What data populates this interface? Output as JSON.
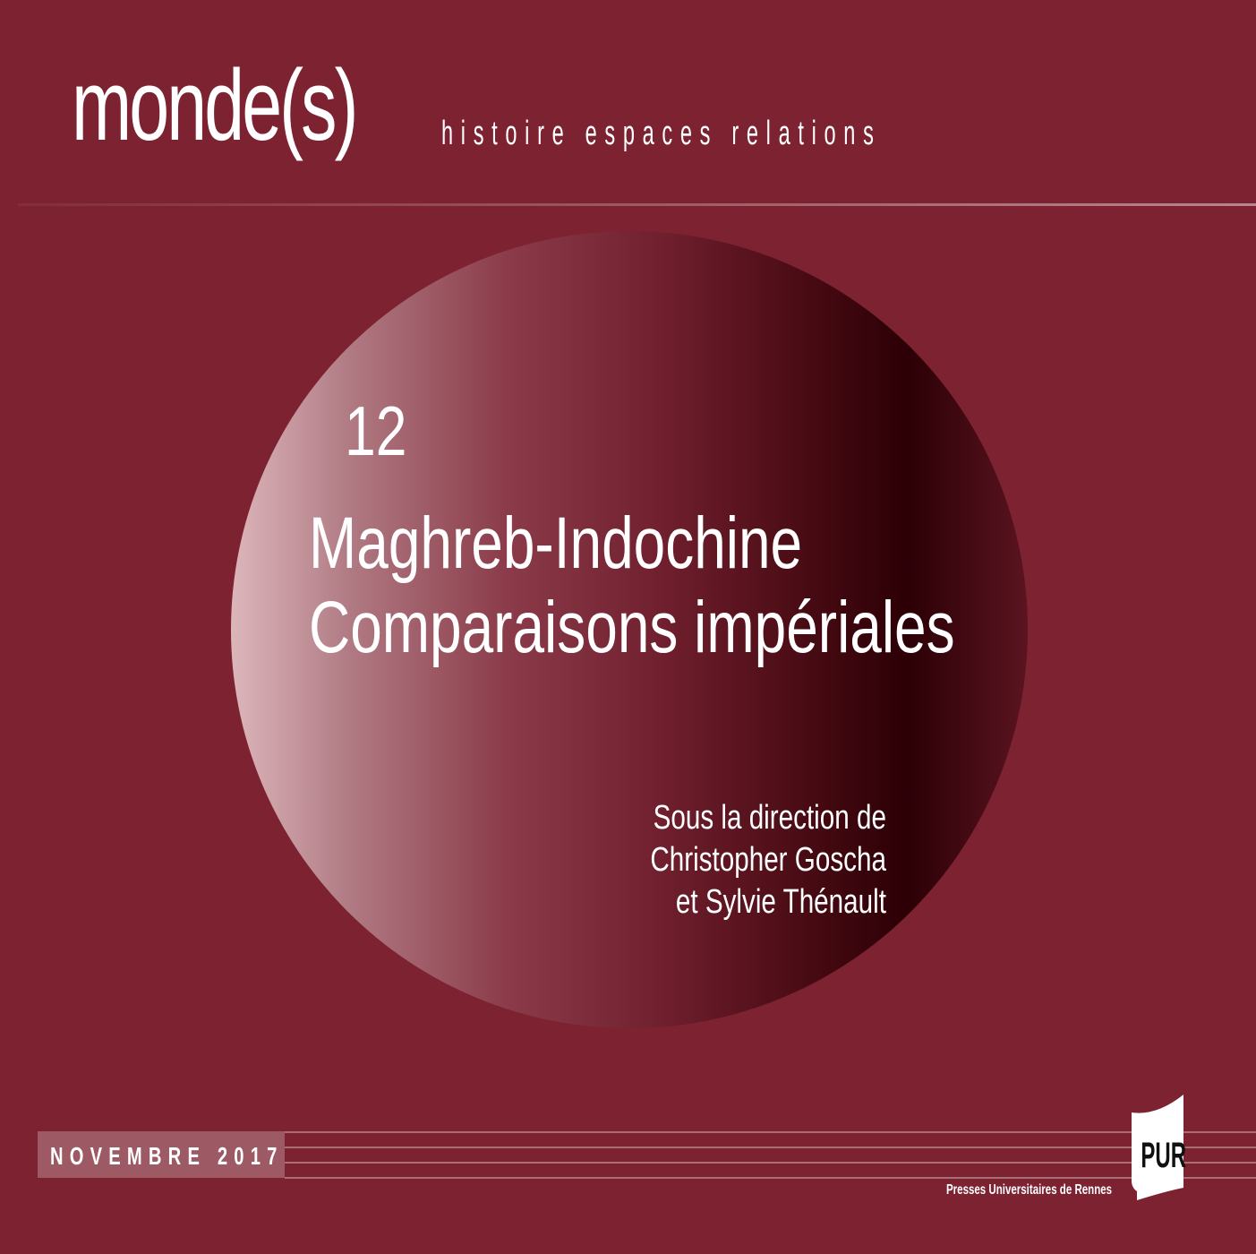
{
  "series_name": "monde(s)",
  "tagline": "histoire espaces relations",
  "issue_number": "12",
  "title_line1": "Maghreb-Indochine",
  "title_line2": "Comparaisons impériales",
  "editors": {
    "line1": "Sous la direction de",
    "line2": "Christopher Goscha",
    "line3": "et Sylvie Thénault"
  },
  "date": "NOVEMBRE 2017",
  "publisher_logo": "PUR",
  "publisher_name": "Presses Universitaires de Rennes",
  "colors": {
    "background": "#7c2231",
    "text": "#ffffff"
  }
}
